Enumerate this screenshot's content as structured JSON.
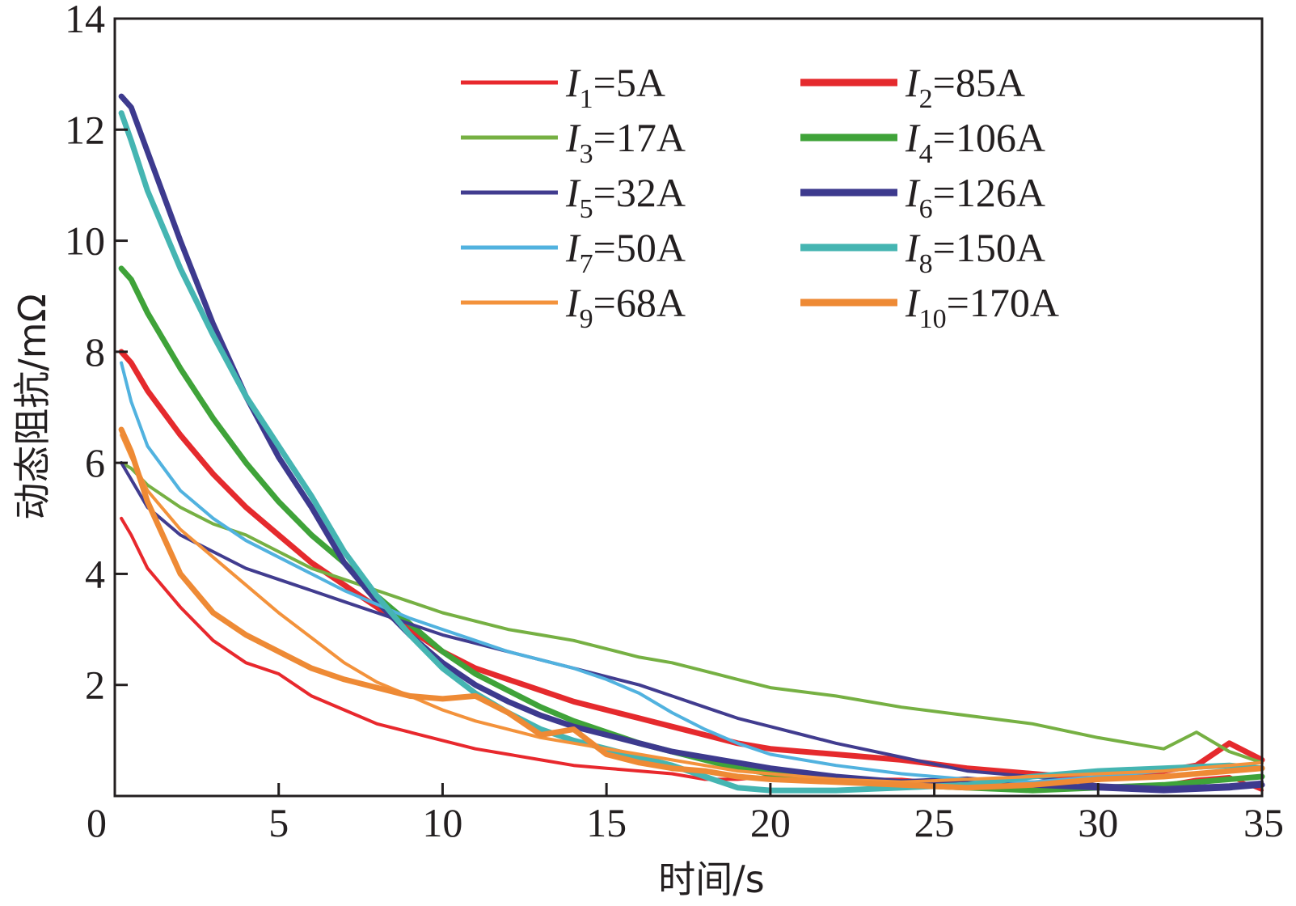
{
  "chart_data": {
    "type": "line",
    "title": "",
    "xlabel": "时间/s",
    "ylabel": "动态阻抗/mΩ",
    "xlim": [
      0,
      35
    ],
    "ylim": [
      0,
      14
    ],
    "xticks": [
      0,
      5,
      10,
      15,
      20,
      25,
      30,
      35
    ],
    "yticks": [
      0,
      2,
      4,
      6,
      8,
      10,
      12,
      14
    ],
    "xtick_labels": [
      "0",
      "5",
      "10",
      "15",
      "20",
      "25",
      "30",
      "35"
    ],
    "ytick_labels": [
      "0",
      "2",
      "4",
      "6",
      "8",
      "10",
      "12",
      "14"
    ],
    "grid": false,
    "legend_position": "top-right",
    "series": [
      {
        "name": "I1=5A",
        "symbol": "I",
        "sub": "1",
        "value": "=5A",
        "color": "#e8282d",
        "width": "thin",
        "x": [
          0.2,
          0.5,
          1,
          2,
          3,
          4,
          5,
          6,
          7,
          8,
          9,
          10,
          11,
          12,
          13,
          14,
          15,
          16,
          17,
          18,
          19,
          20,
          22,
          24,
          26,
          28,
          30,
          32,
          33,
          34,
          35
        ],
        "y": [
          5.0,
          4.7,
          4.1,
          3.4,
          2.8,
          2.4,
          2.2,
          1.8,
          1.55,
          1.3,
          1.15,
          1.0,
          0.85,
          0.75,
          0.65,
          0.55,
          0.5,
          0.45,
          0.4,
          0.3,
          0.3,
          0.35,
          0.3,
          0.3,
          0.2,
          0.25,
          0.15,
          0.2,
          0.3,
          0.35,
          0.1
        ]
      },
      {
        "name": "I2=85A",
        "symbol": "I",
        "sub": "2",
        "value": "=85A",
        "color": "#e52a2d",
        "width": "thick",
        "x": [
          0.2,
          0.5,
          1,
          2,
          3,
          4,
          5,
          6,
          7,
          8,
          9,
          10,
          11,
          12,
          13,
          14,
          15,
          16,
          17,
          18,
          19,
          20,
          22,
          24,
          26,
          28,
          30,
          32,
          33,
          34,
          35
        ],
        "y": [
          8.0,
          7.8,
          7.3,
          6.5,
          5.8,
          5.2,
          4.7,
          4.2,
          3.8,
          3.4,
          3.0,
          2.6,
          2.3,
          2.1,
          1.9,
          1.7,
          1.55,
          1.4,
          1.25,
          1.1,
          0.95,
          0.85,
          0.75,
          0.65,
          0.5,
          0.4,
          0.3,
          0.45,
          0.55,
          0.95,
          0.65
        ]
      },
      {
        "name": "I3=17A",
        "symbol": "I",
        "sub": "3",
        "value": "=17A",
        "color": "#76b043",
        "width": "thin",
        "x": [
          0.2,
          0.5,
          1,
          2,
          3,
          4,
          5,
          6,
          7,
          8,
          9,
          10,
          11,
          12,
          13,
          14,
          15,
          16,
          17,
          18,
          19,
          20,
          22,
          24,
          26,
          28,
          30,
          31,
          32,
          33,
          34,
          35
        ],
        "y": [
          6.0,
          5.9,
          5.6,
          5.2,
          4.9,
          4.7,
          4.4,
          4.1,
          3.9,
          3.7,
          3.5,
          3.3,
          3.15,
          3.0,
          2.9,
          2.8,
          2.65,
          2.5,
          2.4,
          2.25,
          2.1,
          1.95,
          1.8,
          1.6,
          1.45,
          1.3,
          1.05,
          0.95,
          0.85,
          1.15,
          0.8,
          0.6
        ]
      },
      {
        "name": "I4=106A",
        "symbol": "I",
        "sub": "4",
        "value": "=106A",
        "color": "#3fa339",
        "width": "thick",
        "x": [
          0.2,
          0.5,
          1,
          2,
          3,
          4,
          5,
          6,
          7,
          8,
          9,
          10,
          11,
          12,
          13,
          14,
          15,
          16,
          17,
          18,
          19,
          20,
          22,
          24,
          26,
          28,
          30,
          32,
          34,
          35
        ],
        "y": [
          9.5,
          9.3,
          8.7,
          7.7,
          6.8,
          6.0,
          5.3,
          4.7,
          4.2,
          3.6,
          3.1,
          2.6,
          2.2,
          1.9,
          1.6,
          1.35,
          1.15,
          0.95,
          0.8,
          0.65,
          0.5,
          0.4,
          0.3,
          0.2,
          0.15,
          0.1,
          0.15,
          0.2,
          0.3,
          0.35
        ]
      },
      {
        "name": "I5=32A",
        "symbol": "I",
        "sub": "5",
        "value": "=32A",
        "color": "#413c8f",
        "width": "thin",
        "x": [
          0.2,
          0.5,
          1,
          2,
          3,
          4,
          5,
          6,
          7,
          8,
          9,
          10,
          11,
          12,
          13,
          14,
          15,
          16,
          17,
          18,
          19,
          20,
          21,
          22,
          24,
          26,
          28,
          30,
          32,
          34,
          35
        ],
        "y": [
          6.0,
          5.7,
          5.2,
          4.7,
          4.4,
          4.1,
          3.9,
          3.7,
          3.5,
          3.3,
          3.1,
          2.9,
          2.75,
          2.6,
          2.45,
          2.3,
          2.15,
          2.0,
          1.8,
          1.6,
          1.4,
          1.25,
          1.1,
          0.95,
          0.7,
          0.45,
          0.35,
          0.2,
          0.15,
          0.2,
          0.25
        ]
      },
      {
        "name": "I6=126A",
        "symbol": "I",
        "sub": "6",
        "value": "=126A",
        "color": "#3d3a8e",
        "width": "thick",
        "x": [
          0.2,
          0.5,
          1,
          2,
          3,
          4,
          5,
          6,
          7,
          8,
          9,
          10,
          11,
          12,
          13,
          14,
          15,
          16,
          17,
          18,
          19,
          20,
          22,
          24,
          26,
          28,
          30,
          32,
          34,
          35
        ],
        "y": [
          12.6,
          12.4,
          11.6,
          10.0,
          8.5,
          7.2,
          6.1,
          5.2,
          4.2,
          3.5,
          2.9,
          2.4,
          2.0,
          1.7,
          1.45,
          1.25,
          1.1,
          0.95,
          0.8,
          0.7,
          0.6,
          0.5,
          0.35,
          0.25,
          0.3,
          0.2,
          0.15,
          0.1,
          0.15,
          0.2
        ]
      },
      {
        "name": "I7=50A",
        "symbol": "I",
        "sub": "7",
        "value": "=50A",
        "color": "#51b2df",
        "width": "thin",
        "x": [
          0.2,
          0.5,
          1,
          2,
          3,
          4,
          5,
          6,
          7,
          8,
          9,
          10,
          11,
          12,
          13,
          14,
          15,
          16,
          17,
          18,
          19,
          20,
          22,
          24,
          26,
          28,
          30,
          32,
          34,
          35
        ],
        "y": [
          7.8,
          7.1,
          6.3,
          5.5,
          5.0,
          4.6,
          4.3,
          4.0,
          3.7,
          3.45,
          3.2,
          3.0,
          2.8,
          2.6,
          2.45,
          2.3,
          2.1,
          1.85,
          1.5,
          1.2,
          0.95,
          0.75,
          0.55,
          0.4,
          0.3,
          0.25,
          0.35,
          0.45,
          0.55,
          0.5
        ]
      },
      {
        "name": "I8=150A",
        "symbol": "I",
        "sub": "8",
        "value": "=150A",
        "color": "#45b5b2",
        "width": "thick",
        "x": [
          0.2,
          0.5,
          1,
          2,
          3,
          4,
          5,
          6,
          7,
          8,
          9,
          10,
          11,
          12,
          13,
          14,
          15,
          16,
          17,
          18,
          19,
          20,
          22,
          24,
          26,
          28,
          30,
          32,
          34,
          35
        ],
        "y": [
          12.3,
          11.8,
          10.9,
          9.5,
          8.3,
          7.2,
          6.3,
          5.4,
          4.4,
          3.6,
          2.9,
          2.3,
          1.85,
          1.5,
          1.2,
          1.0,
          0.85,
          0.7,
          0.55,
          0.35,
          0.15,
          0.1,
          0.1,
          0.15,
          0.2,
          0.35,
          0.45,
          0.5,
          0.55,
          0.5
        ]
      },
      {
        "name": "I9=68A",
        "symbol": "I",
        "sub": "9",
        "value": "=68A",
        "color": "#f3923b",
        "width": "thin",
        "x": [
          0.2,
          0.5,
          1,
          2,
          3,
          4,
          5,
          6,
          7,
          8,
          9,
          10,
          11,
          12,
          13,
          14,
          15,
          16,
          17,
          18,
          19,
          20,
          22,
          24,
          26,
          28,
          30,
          32,
          34,
          35
        ],
        "y": [
          6.5,
          6.1,
          5.5,
          4.8,
          4.3,
          3.8,
          3.3,
          2.85,
          2.4,
          2.05,
          1.8,
          1.55,
          1.35,
          1.2,
          1.05,
          0.95,
          0.85,
          0.75,
          0.65,
          0.55,
          0.45,
          0.4,
          0.3,
          0.25,
          0.3,
          0.35,
          0.4,
          0.45,
          0.55,
          0.6
        ]
      },
      {
        "name": "I10=170A",
        "symbol": "I",
        "sub": "10",
        "value": "=170A",
        "color": "#ee8a35",
        "width": "thick",
        "x": [
          0.2,
          0.5,
          1,
          2,
          3,
          4,
          5,
          6,
          7,
          8,
          9,
          10,
          11,
          12,
          13,
          14,
          15,
          16,
          17,
          18,
          19,
          20,
          22,
          24,
          26,
          28,
          30,
          32,
          34,
          35
        ],
        "y": [
          6.6,
          6.2,
          5.3,
          4.0,
          3.3,
          2.9,
          2.6,
          2.3,
          2.1,
          1.95,
          1.8,
          1.75,
          1.8,
          1.5,
          1.1,
          1.2,
          0.75,
          0.6,
          0.5,
          0.45,
          0.35,
          0.3,
          0.25,
          0.2,
          0.15,
          0.2,
          0.3,
          0.35,
          0.45,
          0.5
        ]
      }
    ]
  }
}
